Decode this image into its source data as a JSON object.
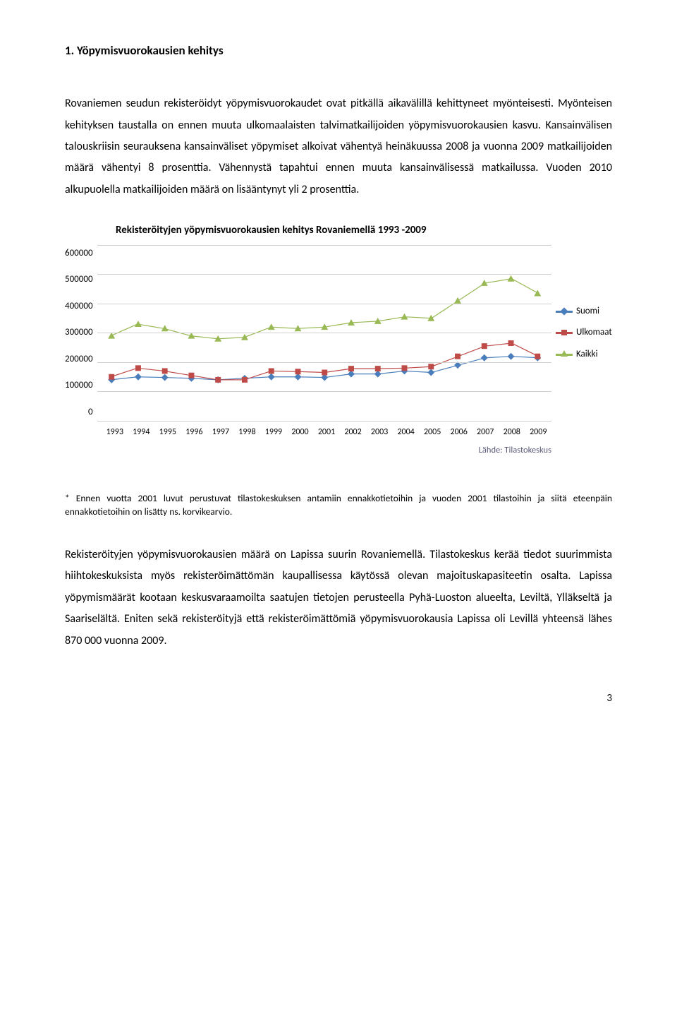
{
  "heading": "1.   Yöpymisvuorokausien kehitys",
  "para1": "Rovaniemen seudun rekisteröidyt yöpymisvuorokaudet ovat pitkällä aikavälillä kehittyneet myönteisesti. Myönteisen kehityksen taustalla on ennen muuta ulkomaalaisten talvimatkailijoiden yöpymisvuorokausien kasvu. Kansainvälisen talouskriisin seurauksena kansainväliset yöpymiset alkoivat vähentyä heinäkuussa 2008 ja vuonna 2009 matkailijoiden määrä vähentyi 8 prosenttia. Vähennystä tapahtui ennen muuta kansainvälisessä matkailussa. Vuoden 2010 alkupuolella matkailijoiden määrä on lisääntynyt yli 2 prosenttia.",
  "footnote": "* Ennen vuotta 2001 luvut perustuvat tilastokeskuksen antamiin ennakkotietoihin ja vuoden 2001 tilastoihin ja siitä eteenpäin ennakkotietoihin on lisätty ns. korvikearvio.",
  "para2": "Rekisteröityjen yöpymisvuorokausien määrä on Lapissa suurin Rovaniemellä. Tilastokeskus kerää tiedot suurimmista hiihtokeskuksista myös rekisteröimättömän kaupallisessa käytössä olevan majoituskapasiteetin osalta. Lapissa yöpymismäärät kootaan keskusvaraamoilta saatujen tietojen perusteella Pyhä-Luoston alueelta, Leviltä, Ylläkseltä ja Saariselältä. Eniten sekä rekisteröityjä että rekisteröimättömiä yöpymisvuorokausia Lapissa oli Levillä yhteensä lähes 870 000 vuonna 2009.",
  "page_number": "3",
  "chart": {
    "title": "Rekisteröityjen yöpymisvuorokausien kehitys Rovaniemellä 1993 -2009",
    "source": "Lähde: Tilastokeskus",
    "y_ticks": [
      "600000",
      "500000",
      "400000",
      "300000",
      "200000",
      "100000",
      "0"
    ],
    "y_max": 600000,
    "x_labels": [
      "1993",
      "1994",
      "1995",
      "1996",
      "1997",
      "1998",
      "1999",
      "2000",
      "2001",
      "2002",
      "2003",
      "2004",
      "2005",
      "2006",
      "2007",
      "2008",
      "2009"
    ],
    "grid_color": "#d0d0d0",
    "series": [
      {
        "name": "Suomi",
        "color": "#4a7ebb",
        "marker": "diamond",
        "values": [
          140000,
          150000,
          148000,
          145000,
          140000,
          145000,
          150000,
          150000,
          148000,
          160000,
          160000,
          170000,
          165000,
          190000,
          215000,
          220000,
          215000
        ]
      },
      {
        "name": "Ulkomaat",
        "color": "#be4b48",
        "marker": "square",
        "values": [
          150000,
          180000,
          170000,
          155000,
          140000,
          140000,
          170000,
          168000,
          165000,
          178000,
          178000,
          180000,
          185000,
          220000,
          255000,
          265000,
          220000
        ]
      },
      {
        "name": "Kaikki",
        "color": "#98b954",
        "marker": "triangle",
        "values": [
          290000,
          330000,
          315000,
          290000,
          280000,
          285000,
          320000,
          315000,
          320000,
          335000,
          340000,
          355000,
          350000,
          410000,
          470000,
          485000,
          435000
        ]
      }
    ],
    "legend": [
      {
        "label": "Suomi",
        "color": "#4a7ebb",
        "marker": "diamond"
      },
      {
        "label": "Ulkomaat",
        "color": "#be4b48",
        "marker": "square"
      },
      {
        "label": "Kaikki",
        "color": "#98b954",
        "marker": "triangle"
      }
    ]
  }
}
